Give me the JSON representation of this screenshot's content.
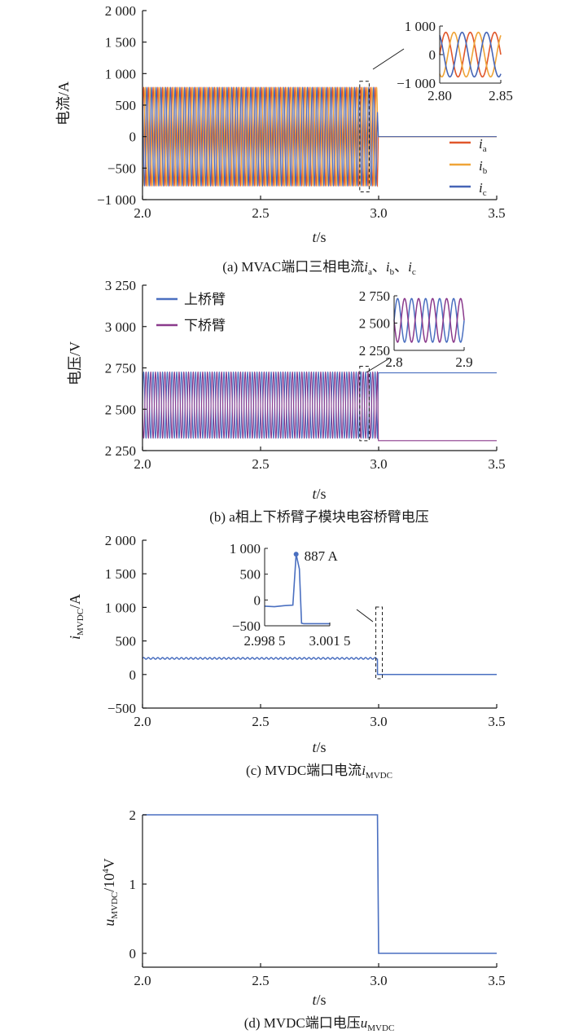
{
  "colors": {
    "phase_a": "#e0572b",
    "phase_b": "#efa437",
    "phase_c": "#4665b6",
    "upper_arm": "#4a6fc0",
    "lower_arm": "#8a3a8c",
    "dc": "#4a6fc0",
    "axis": "#1a1a1a"
  },
  "chart_data": [
    {
      "id": "a",
      "type": "line",
      "caption": {
        "prefix": "(a)  MVAC端口三相电流",
        "var_a": "i",
        "sub_a": "a",
        "sep1": "、",
        "var_b": "i",
        "sub_b": "b",
        "sep2": "、",
        "var_c": "i",
        "sub_c": "c"
      },
      "xlabel": {
        "var": "t",
        "unit": "/s"
      },
      "ylabel": "电流/A",
      "xlim": [
        2.0,
        3.5
      ],
      "ylim": [
        -1000,
        2000
      ],
      "xticks": [
        "2.0",
        "2.5",
        "3.0",
        "3.5"
      ],
      "yticks": [
        "−1 000",
        "−500",
        "0",
        "500",
        "1 000",
        "1 500",
        "2 000"
      ],
      "series": [
        {
          "name": "a",
          "color_key": "phase_a",
          "amplitude": 780,
          "phase_deg": 0,
          "frequency_hz": 50,
          "trip_time_s": 2.995,
          "after_value": 0
        },
        {
          "name": "b",
          "color_key": "phase_b",
          "amplitude": 780,
          "phase_deg": -120,
          "frequency_hz": 50,
          "trip_time_s": 2.995,
          "after_value": 0
        },
        {
          "name": "c",
          "color_key": "phase_c",
          "amplitude": 780,
          "phase_deg": 120,
          "frequency_hz": 50,
          "trip_time_s": 2.995,
          "after_value": 0
        }
      ],
      "legend": {
        "placement": "lower-right",
        "entries": [
          {
            "var": "i",
            "sub": "a"
          },
          {
            "var": "i",
            "sub": "b"
          },
          {
            "var": "i",
            "sub": "c"
          }
        ]
      },
      "zoom_window": {
        "x": [
          2.92,
          2.96
        ],
        "y": [
          -800,
          800
        ]
      },
      "inset": {
        "xlim": [
          2.8,
          2.85
        ],
        "ylim": [
          -1000,
          1000
        ],
        "xticks": [
          "2.80",
          "2.85"
        ],
        "yticks": [
          "1 000",
          "0",
          "−1 000"
        ]
      }
    },
    {
      "id": "b",
      "type": "line",
      "caption": {
        "text": "(b)  a相上下桥臂子模块电容桥臂电压"
      },
      "xlabel": {
        "var": "t",
        "unit": "/s"
      },
      "ylabel": "电压/V",
      "xlim": [
        2.0,
        3.5
      ],
      "ylim": [
        2250,
        3250
      ],
      "xticks": [
        "2.0",
        "2.5",
        "3.0",
        "3.5"
      ],
      "yticks": [
        "2 250",
        "2 500",
        "2 750",
        "3 000",
        "3 250"
      ],
      "series": [
        {
          "name": "上桥臂",
          "color_key": "upper_arm",
          "mean": 2525,
          "amplitude": 200,
          "phase_deg": 0,
          "frequency_hz": 50,
          "trip_time_s": 2.995,
          "after_value": 2720
        },
        {
          "name": "下桥臂",
          "color_key": "lower_arm",
          "mean": 2525,
          "amplitude": 200,
          "phase_deg": 180,
          "frequency_hz": 50,
          "trip_time_s": 2.995,
          "after_value": 2310
        }
      ],
      "legend": {
        "placement": "top-left"
      },
      "zoom_window": {
        "x": [
          2.92,
          2.96
        ],
        "y": [
          2310,
          2760
        ]
      },
      "inset": {
        "xlim": [
          2.8,
          2.9
        ],
        "ylim": [
          2250,
          2750
        ],
        "xticks": [
          "2.8",
          "2.9"
        ],
        "yticks": [
          "2 750",
          "2 500",
          "2 250"
        ]
      }
    },
    {
      "id": "c",
      "type": "line",
      "caption": {
        "prefix": "(c)  MVDC端口电流",
        "var": "i",
        "sub": "MVDC"
      },
      "xlabel": {
        "var": "t",
        "unit": "/s"
      },
      "ylabel": {
        "var": "i",
        "sub": "MVDC",
        "unit": "/A"
      },
      "xlim": [
        2.0,
        3.5
      ],
      "ylim": [
        -500,
        2000
      ],
      "xticks": [
        "2.0",
        "2.5",
        "3.0",
        "3.5"
      ],
      "yticks": [
        "−500",
        "0",
        "500",
        "1 000",
        "1 500",
        "2 000"
      ],
      "series": [
        {
          "name": "i_MVDC",
          "color_key": "dc",
          "mean": 240,
          "ripple": 12,
          "frequency_hz": 50,
          "trip_time_s": 2.995,
          "after_value": 0
        }
      ],
      "zoom_window": {
        "x": [
          2.995,
          3.01
        ],
        "y": [
          -120,
          1000
        ]
      },
      "inset": {
        "xlim": [
          2.9985,
          3.0015
        ],
        "ylim": [
          -500,
          1000
        ],
        "xticks": [
          "2.998 5",
          "3.001 5"
        ],
        "yticks": [
          "1 000",
          "500",
          "0",
          "−500"
        ],
        "points": [
          [
            2.9985,
            -120
          ],
          [
            2.99895,
            -130
          ],
          [
            2.9994,
            -110
          ],
          [
            2.9998,
            -100
          ],
          [
            2.99995,
            887
          ],
          [
            3.0001,
            600
          ],
          [
            3.0002,
            -450
          ],
          [
            3.0003,
            -460
          ],
          [
            3.0015,
            -460
          ]
        ],
        "peak": {
          "x": 2.99995,
          "y": 887,
          "label": "887 A"
        }
      }
    },
    {
      "id": "d",
      "type": "line",
      "caption": {
        "prefix": "(d)  MVDC端口电压",
        "var": "u",
        "sub": "MVDC"
      },
      "xlabel": {
        "var": "t",
        "unit": "/s"
      },
      "ylabel": {
        "var": "u",
        "sub": "MVDC",
        "unit": "/10",
        "sup": "4",
        "unit2": "V"
      },
      "xlim": [
        2.0,
        3.5
      ],
      "ylim": [
        -0.2,
        2.0
      ],
      "xticks": [
        "2.0",
        "2.5",
        "3.0",
        "3.5"
      ],
      "yticks": [
        "0",
        "1",
        "2"
      ],
      "series": [
        {
          "name": "u_MVDC",
          "color_key": "dc",
          "points": [
            [
              2.0,
              2.0
            ],
            [
              2.995,
              2.0
            ],
            [
              3.0,
              0.0
            ],
            [
              3.5,
              0.0
            ]
          ]
        }
      ]
    }
  ]
}
